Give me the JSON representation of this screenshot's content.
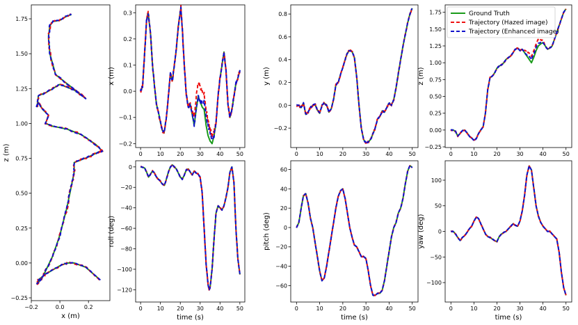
{
  "figure": {
    "legend": {
      "placement": "top-right of last top panel",
      "entries": [
        {
          "label": "Ground Truth",
          "color": "#1a9a1a",
          "style": "solid"
        },
        {
          "label": "Trajectory (Hazed image)",
          "color": "#ee1111",
          "style": "dashed"
        },
        {
          "label": "Trajectory (Enhanced image)",
          "color": "#1111cc",
          "style": "dashed"
        }
      ]
    }
  },
  "chart_data": [
    {
      "id": "xz",
      "type": "line",
      "xlabel": "x (m)",
      "ylabel": "z (m)",
      "xlim": [
        -0.2,
        0.35
      ],
      "ylim": [
        -0.27,
        1.85
      ],
      "xticks": [
        -0.2,
        0.0,
        0.2
      ],
      "xticklabels": [
        "−0.2",
        "0.0",
        "0.2"
      ],
      "yticks": [
        -0.25,
        0.0,
        0.25,
        0.5,
        0.75,
        1.0,
        1.25,
        1.5,
        1.75
      ],
      "yticklabels": [
        "−0.25",
        "0.00",
        "0.25",
        "0.50",
        "0.75",
        "1.00",
        "1.25",
        "1.50",
        "1.75"
      ],
      "x": [
        0.28,
        0.18,
        0.1,
        0.05,
        0.0,
        -0.1,
        -0.15,
        -0.16,
        -0.12,
        -0.05,
        0.0,
        0.05,
        0.08,
        0.1,
        0.1,
        0.2,
        0.28,
        0.3,
        0.25,
        0.15,
        0.05,
        -0.05,
        -0.1,
        -0.08,
        -0.12,
        -0.15,
        -0.16,
        -0.15,
        -0.1,
        -0.05,
        0.0,
        0.1,
        0.18,
        -0.03,
        -0.07,
        -0.08,
        -0.07,
        -0.05,
        0.0,
        0.05,
        0.08
      ],
      "y": [
        -0.12,
        -0.03,
        0.0,
        0.0,
        -0.02,
        -0.08,
        -0.12,
        -0.15,
        -0.1,
        0.05,
        0.2,
        0.4,
        0.55,
        0.65,
        0.72,
        0.76,
        0.8,
        0.8,
        0.85,
        0.92,
        0.96,
        0.98,
        1.0,
        1.06,
        1.1,
        1.15,
        1.12,
        1.2,
        1.22,
        1.25,
        1.28,
        1.24,
        1.18,
        1.35,
        1.5,
        1.62,
        1.7,
        1.73,
        1.74,
        1.77,
        1.78
      ],
      "series": [
        {
          "name": "Ground Truth",
          "color": "#1a9a1a",
          "dash": "",
          "width": 2,
          "seed": 1,
          "noise": 0.0
        },
        {
          "name": "Trajectory (Hazed image)",
          "color": "#ee1111",
          "dash": "5,3",
          "width": 2,
          "seed": 2,
          "noise": 0.006
        },
        {
          "name": "Trajectory (Enhanced image)",
          "color": "#1111cc",
          "dash": "5,3",
          "width": 2,
          "seed": 3,
          "noise": 0.004
        }
      ]
    },
    {
      "id": "x",
      "type": "line",
      "xlabel": "",
      "ylabel": "x (m)",
      "xlim": [
        -2.5,
        52.5
      ],
      "ylim": [
        -0.215,
        0.33
      ],
      "xticks": [
        0,
        10,
        20,
        30,
        40,
        50
      ],
      "xticklabels": [
        "0",
        "10",
        "20",
        "30",
        "40",
        "50"
      ],
      "yticks": [
        -0.2,
        -0.1,
        0.0,
        0.1,
        0.2,
        0.3
      ],
      "yticklabels": [
        "−0.2",
        "−0.1",
        "0.0",
        "0.1",
        "0.2",
        "0.3"
      ],
      "x": [
        0,
        1,
        2,
        3,
        3.8,
        5,
        6,
        7,
        8,
        9,
        10,
        11,
        11.8,
        13,
        14,
        15,
        16,
        17,
        18,
        19,
        20.3,
        21,
        22,
        23,
        24,
        25,
        26,
        27,
        28,
        29,
        30,
        31,
        32,
        33,
        34,
        35,
        36,
        37,
        38,
        39,
        40,
        41,
        42,
        43,
        44,
        45,
        46,
        47,
        48,
        49,
        50
      ],
      "y": [
        0.0,
        0.02,
        0.14,
        0.27,
        0.3,
        0.22,
        0.1,
        0.02,
        -0.05,
        -0.08,
        -0.12,
        -0.15,
        -0.16,
        -0.1,
        -0.02,
        0.07,
        0.04,
        0.1,
        0.16,
        0.25,
        0.32,
        0.24,
        0.1,
        -0.01,
        -0.06,
        -0.05,
        -0.09,
        -0.13,
        -0.07,
        -0.02,
        -0.04,
        -0.06,
        -0.07,
        -0.13,
        -0.17,
        -0.19,
        -0.2,
        -0.17,
        -0.12,
        -0.02,
        0.05,
        0.1,
        0.15,
        0.08,
        -0.05,
        -0.1,
        -0.07,
        -0.02,
        0.03,
        0.05,
        0.08
      ],
      "series": [
        {
          "name": "Ground Truth",
          "color": "#1a9a1a",
          "dash": "",
          "width": 2,
          "seed": 11,
          "noise": 0.0
        },
        {
          "name": "Trajectory (Hazed image)",
          "color": "#ee1111",
          "dash": "5,3",
          "width": 2,
          "seed": 12,
          "noise": 0.008,
          "offset": {
            "from": 25,
            "to": 38,
            "dy": 0.06
          }
        },
        {
          "name": "Trajectory (Enhanced image)",
          "color": "#1111cc",
          "dash": "5,3",
          "width": 2,
          "seed": 13,
          "noise": 0.006,
          "offset": {
            "from": 30,
            "to": 37,
            "dy": 0.035
          }
        }
      ]
    },
    {
      "id": "y",
      "type": "line",
      "xlabel": "",
      "ylabel": "y (m)",
      "xlim": [
        -2.5,
        52.5
      ],
      "ylim": [
        -0.37,
        0.88
      ],
      "xticks": [
        0,
        10,
        20,
        30,
        40,
        50
      ],
      "xticklabels": [
        "0",
        "10",
        "20",
        "30",
        "40",
        "50"
      ],
      "yticks": [
        -0.2,
        0.0,
        0.2,
        0.4,
        0.6,
        0.8
      ],
      "yticklabels": [
        "−0.2",
        "0.0",
        "0.2",
        "0.4",
        "0.6",
        "0.8"
      ],
      "x": [
        0,
        1,
        2,
        3,
        4,
        5,
        6,
        7,
        8,
        9,
        10,
        11,
        12,
        13,
        14,
        15,
        16,
        17,
        18,
        19,
        20,
        21,
        22,
        23,
        24,
        25,
        26,
        27,
        28,
        29,
        30,
        31,
        32,
        33,
        34,
        35,
        36,
        37,
        38,
        39,
        40,
        41,
        42,
        43,
        44,
        45,
        46,
        47,
        48,
        49,
        50
      ],
      "y": [
        0.0,
        0.0,
        -0.02,
        0.02,
        -0.08,
        -0.06,
        -0.02,
        0.0,
        0.01,
        -0.04,
        -0.07,
        0.0,
        0.02,
        0.0,
        -0.06,
        -0.03,
        0.05,
        0.18,
        0.2,
        0.27,
        0.33,
        0.4,
        0.46,
        0.48,
        0.47,
        0.42,
        0.25,
        0.0,
        -0.2,
        -0.3,
        -0.33,
        -0.32,
        -0.3,
        -0.25,
        -0.2,
        -0.12,
        -0.1,
        -0.05,
        -0.06,
        -0.02,
        0.02,
        0.0,
        0.05,
        0.15,
        0.28,
        0.4,
        0.52,
        0.62,
        0.72,
        0.8,
        0.85
      ],
      "series": [
        {
          "name": "Ground Truth",
          "color": "#1a9a1a",
          "dash": "",
          "width": 2,
          "seed": 21,
          "noise": 0.0
        },
        {
          "name": "Trajectory (Hazed image)",
          "color": "#ee1111",
          "dash": "5,3",
          "width": 2,
          "seed": 22,
          "noise": 0.01
        },
        {
          "name": "Trajectory (Enhanced image)",
          "color": "#1111cc",
          "dash": "5,3",
          "width": 2,
          "seed": 23,
          "noise": 0.006
        }
      ]
    },
    {
      "id": "z",
      "type": "line",
      "xlabel": "",
      "ylabel": "z (m)",
      "xlim": [
        -2.5,
        52.5
      ],
      "ylim": [
        -0.26,
        1.86
      ],
      "xticks": [
        0,
        10,
        20,
        30,
        40,
        50
      ],
      "xticklabels": [
        "0",
        "10",
        "20",
        "30",
        "40",
        "50"
      ],
      "yticks": [
        -0.25,
        0.0,
        0.25,
        0.5,
        0.75,
        1.0,
        1.25,
        1.5,
        1.75
      ],
      "yticklabels": [
        "−0.25",
        "0.00",
        "0.25",
        "0.50",
        "0.75",
        "1.00",
        "1.25",
        "1.50",
        "1.75"
      ],
      "x": [
        0,
        1,
        2,
        3,
        4,
        5,
        6,
        7,
        8,
        9,
        10,
        11,
        12,
        13,
        14,
        15,
        16,
        17,
        18,
        19,
        20,
        21,
        22,
        23,
        24,
        25,
        26,
        27,
        28,
        29,
        30,
        31,
        32,
        33,
        34,
        35,
        36,
        37,
        38,
        39,
        40,
        41,
        42,
        43,
        44,
        45,
        46,
        47,
        48,
        49,
        50
      ],
      "y": [
        0.0,
        0.0,
        -0.02,
        -0.09,
        -0.05,
        -0.01,
        0.0,
        -0.04,
        -0.09,
        -0.12,
        -0.15,
        -0.13,
        -0.05,
        0.0,
        0.05,
        0.25,
        0.6,
        0.78,
        0.8,
        0.85,
        0.92,
        0.95,
        0.97,
        1.0,
        1.05,
        1.08,
        1.1,
        1.15,
        1.2,
        1.22,
        1.18,
        1.2,
        1.15,
        1.1,
        1.05,
        1.0,
        1.08,
        1.18,
        1.25,
        1.28,
        1.3,
        1.25,
        1.2,
        1.22,
        1.25,
        1.35,
        1.45,
        1.55,
        1.65,
        1.75,
        1.8
      ],
      "series": [
        {
          "name": "Ground Truth",
          "color": "#1a9a1a",
          "dash": "",
          "width": 2,
          "seed": 31,
          "noise": 0.0
        },
        {
          "name": "Trajectory (Hazed image)",
          "color": "#ee1111",
          "dash": "5,3",
          "width": 2,
          "seed": 32,
          "noise": 0.008,
          "offset": {
            "from": 31,
            "to": 41,
            "dy": 0.1
          }
        },
        {
          "name": "Trajectory (Enhanced image)",
          "color": "#1111cc",
          "dash": "5,3",
          "width": 2,
          "seed": 33,
          "noise": 0.006,
          "offset": {
            "from": 32,
            "to": 40,
            "dy": 0.05
          }
        }
      ]
    },
    {
      "id": "roll",
      "type": "line",
      "xlabel": "time (s)",
      "ylabel": "roll (deg)",
      "xlim": [
        -2.5,
        52.5
      ],
      "ylim": [
        -132,
        6
      ],
      "xticks": [
        0,
        10,
        20,
        30,
        40,
        50
      ],
      "xticklabels": [
        "0",
        "10",
        "20",
        "30",
        "40",
        "50"
      ],
      "yticks": [
        0,
        -20,
        -40,
        -60,
        -80,
        -100,
        -120
      ],
      "yticklabels": [
        "0",
        "−20",
        "−40",
        "−60",
        "−80",
        "−100",
        "−120"
      ],
      "x": [
        0,
        2,
        3,
        4,
        5,
        6,
        7,
        8,
        9,
        10,
        11,
        12,
        13,
        14,
        15,
        16,
        17,
        18,
        19,
        20,
        21,
        22,
        23,
        24,
        25,
        26,
        27,
        28,
        29,
        30,
        31,
        32,
        33,
        34,
        34.5,
        35,
        36,
        37,
        38,
        39,
        40,
        41,
        42,
        43,
        44,
        45,
        46,
        47,
        48,
        49,
        50
      ],
      "y": [
        0,
        -1,
        -5,
        -10,
        -7,
        -4,
        -6,
        -10,
        -12,
        -14,
        -17,
        -18,
        -12,
        -5,
        0,
        2,
        0,
        -2,
        -6,
        -10,
        -12,
        -8,
        -3,
        -2,
        -5,
        -8,
        -4,
        -6,
        -7,
        -10,
        -25,
        -60,
        -95,
        -115,
        -120,
        -118,
        -100,
        -70,
        -45,
        -38,
        -40,
        -42,
        -38,
        -30,
        -20,
        -5,
        0,
        -15,
        -60,
        -90,
        -105
      ],
      "series": [
        {
          "name": "Ground Truth",
          "color": "#1a9a1a",
          "dash": "",
          "width": 2,
          "seed": 41,
          "noise": 0.0
        },
        {
          "name": "Trajectory (Hazed image)",
          "color": "#ee1111",
          "dash": "5,3",
          "width": 2,
          "seed": 42,
          "noise": 0.6
        },
        {
          "name": "Trajectory (Enhanced image)",
          "color": "#1111cc",
          "dash": "5,3",
          "width": 2,
          "seed": 43,
          "noise": 0.4
        }
      ]
    },
    {
      "id": "pitch",
      "type": "line",
      "xlabel": "time (s)",
      "ylabel": "pitch (deg)",
      "xlim": [
        -2.5,
        52.5
      ],
      "ylim": [
        -77,
        69
      ],
      "xticks": [
        0,
        10,
        20,
        30,
        40,
        50
      ],
      "xticklabels": [
        "0",
        "10",
        "20",
        "30",
        "40",
        "50"
      ],
      "yticks": [
        60,
        40,
        20,
        0,
        -20,
        -40,
        -60
      ],
      "yticklabels": [
        "60",
        "40",
        "20",
        "0",
        "−20",
        "−40",
        "−60"
      ],
      "x": [
        0,
        1,
        2,
        3,
        4,
        5,
        6,
        7,
        8,
        9,
        10,
        11,
        12,
        13,
        14,
        15,
        16,
        17,
        18,
        19,
        20,
        21,
        22,
        23,
        24,
        25,
        26,
        27,
        28,
        29,
        30,
        31,
        32,
        33,
        34,
        35,
        36,
        37,
        38,
        39,
        40,
        41,
        42,
        43,
        44,
        45,
        46,
        47,
        48,
        49,
        50
      ],
      "y": [
        0,
        5,
        20,
        33,
        35,
        25,
        10,
        0,
        -15,
        -30,
        -45,
        -55,
        -52,
        -40,
        -25,
        -10,
        5,
        20,
        32,
        38,
        40,
        30,
        15,
        0,
        -10,
        -18,
        -20,
        -25,
        -30,
        -30,
        -32,
        -45,
        -60,
        -70,
        -70,
        -68,
        -68,
        -65,
        -55,
        -40,
        -25,
        -10,
        0,
        5,
        15,
        20,
        30,
        45,
        58,
        64,
        62
      ],
      "series": [
        {
          "name": "Ground Truth",
          "color": "#1a9a1a",
          "dash": "",
          "width": 2,
          "seed": 51,
          "noise": 0.0
        },
        {
          "name": "Trajectory (Hazed image)",
          "color": "#ee1111",
          "dash": "5,3",
          "width": 2,
          "seed": 52,
          "noise": 0.5
        },
        {
          "name": "Trajectory (Enhanced image)",
          "color": "#1111cc",
          "dash": "5,3",
          "width": 2,
          "seed": 53,
          "noise": 0.3
        }
      ]
    },
    {
      "id": "yaw",
      "type": "line",
      "xlabel": "time (s)",
      "ylabel": "yaw (deg)",
      "xlim": [
        -2.5,
        52.5
      ],
      "ylim": [
        -138,
        138
      ],
      "xticks": [
        0,
        10,
        20,
        30,
        40,
        50
      ],
      "xticklabels": [
        "0",
        "10",
        "20",
        "30",
        "40",
        "50"
      ],
      "yticks": [
        100,
        50,
        0,
        -50,
        -100
      ],
      "yticklabels": [
        "100",
        "50",
        "0",
        "−50",
        "−100"
      ],
      "x": [
        0,
        1,
        2,
        3,
        4,
        5,
        6,
        7,
        8,
        9,
        10,
        11,
        12,
        13,
        14,
        15,
        16,
        17,
        18,
        19,
        20,
        21,
        22,
        23,
        24,
        25,
        26,
        27,
        28,
        29,
        30,
        31,
        32,
        33,
        34,
        35,
        36,
        37,
        38,
        39,
        40,
        41,
        42,
        43,
        44,
        45,
        46,
        47,
        48,
        49,
        50
      ],
      "y": [
        0,
        0,
        -5,
        -12,
        -18,
        -12,
        -8,
        -2,
        5,
        10,
        20,
        28,
        25,
        15,
        5,
        -5,
        -10,
        -12,
        -15,
        -18,
        -20,
        -10,
        -5,
        -2,
        0,
        5,
        10,
        15,
        12,
        10,
        20,
        40,
        70,
        110,
        128,
        120,
        85,
        50,
        30,
        18,
        10,
        5,
        0,
        0,
        -5,
        -10,
        -15,
        -40,
        -80,
        -110,
        -125
      ],
      "series": [
        {
          "name": "Ground Truth",
          "color": "#1a9a1a",
          "dash": "",
          "width": 2,
          "seed": 61,
          "noise": 0.0
        },
        {
          "name": "Trajectory (Hazed image)",
          "color": "#ee1111",
          "dash": "5,3",
          "width": 2,
          "seed": 62,
          "noise": 0.8
        },
        {
          "name": "Trajectory (Enhanced image)",
          "color": "#1111cc",
          "dash": "5,3",
          "width": 2,
          "seed": 63,
          "noise": 0.5
        }
      ]
    }
  ]
}
